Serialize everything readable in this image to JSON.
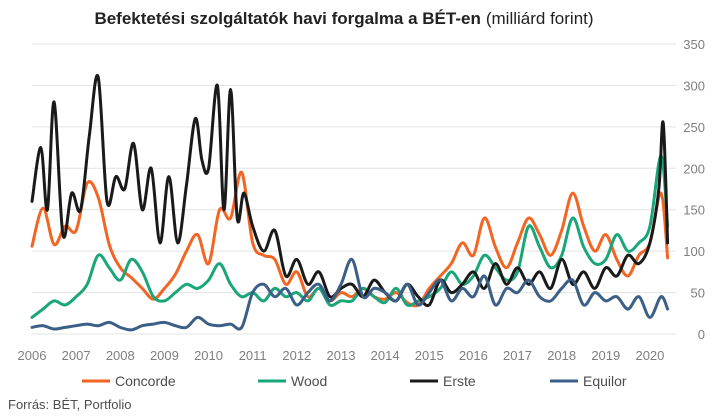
{
  "chart_data": {
    "type": "line",
    "title_bold": "Befektetési szolgáltatók havi forgalma a BÉT-en",
    "title_normal": "(milliárd forint)",
    "source": "Forrás: BÉT, Portfolio",
    "y_axis_side": "right",
    "ylim": [
      0,
      350
    ],
    "yticks": [
      "0",
      "50",
      "100",
      "150",
      "200",
      "250",
      "300",
      "350"
    ],
    "xlim": [
      2006,
      2020.5
    ],
    "xticks": [
      "2006",
      "2007",
      "2008",
      "2009",
      "2010",
      "2011",
      "2012",
      "2013",
      "2014",
      "2015",
      "2016",
      "2017",
      "2018",
      "2019",
      "2020"
    ],
    "grid": true,
    "legend": "bottom",
    "series": [
      {
        "name": "Concorde",
        "color": "#f26522",
        "x": [
          2006.0,
          2006.25,
          2006.5,
          2006.75,
          2007.0,
          2007.25,
          2007.5,
          2007.75,
          2008.0,
          2008.25,
          2008.5,
          2008.75,
          2009.0,
          2009.25,
          2009.5,
          2009.75,
          2010.0,
          2010.25,
          2010.5,
          2010.75,
          2011.0,
          2011.25,
          2011.5,
          2011.75,
          2012.0,
          2012.25,
          2012.5,
          2012.75,
          2013.0,
          2013.25,
          2013.5,
          2013.75,
          2014.0,
          2014.25,
          2014.5,
          2014.75,
          2015.0,
          2015.25,
          2015.5,
          2015.75,
          2016.0,
          2016.25,
          2016.5,
          2016.75,
          2017.0,
          2017.25,
          2017.5,
          2017.75,
          2018.0,
          2018.25,
          2018.5,
          2018.75,
          2019.0,
          2019.25,
          2019.5,
          2019.75,
          2020.0,
          2020.25,
          2020.4
        ],
        "values": [
          106,
          152,
          108,
          130,
          125,
          182,
          165,
          108,
          80,
          68,
          55,
          42,
          55,
          72,
          100,
          120,
          85,
          150,
          140,
          195,
          110,
          95,
          90,
          60,
          75,
          45,
          55,
          40,
          50,
          45,
          55,
          45,
          42,
          50,
          38,
          35,
          55,
          70,
          85,
          110,
          95,
          140,
          105,
          80,
          110,
          140,
          120,
          95,
          125,
          170,
          130,
          100,
          120,
          90,
          70,
          95,
          110,
          170,
          92
        ]
      },
      {
        "name": "Wood",
        "color": "#1aa67a",
        "x": [
          2006.0,
          2006.25,
          2006.5,
          2006.75,
          2007.0,
          2007.25,
          2007.5,
          2007.75,
          2008.0,
          2008.25,
          2008.5,
          2008.75,
          2009.0,
          2009.25,
          2009.5,
          2009.75,
          2010.0,
          2010.25,
          2010.5,
          2010.75,
          2011.0,
          2011.25,
          2011.5,
          2011.75,
          2012.0,
          2012.25,
          2012.5,
          2012.75,
          2013.0,
          2013.25,
          2013.5,
          2013.75,
          2014.0,
          2014.25,
          2014.5,
          2014.75,
          2015.0,
          2015.25,
          2015.5,
          2015.75,
          2016.0,
          2016.25,
          2016.5,
          2016.75,
          2017.0,
          2017.25,
          2017.5,
          2017.75,
          2018.0,
          2018.25,
          2018.5,
          2018.75,
          2019.0,
          2019.25,
          2019.5,
          2019.75,
          2020.0,
          2020.25,
          2020.4
        ],
        "values": [
          20,
          30,
          40,
          35,
          45,
          60,
          95,
          80,
          65,
          90,
          75,
          45,
          40,
          50,
          60,
          55,
          65,
          85,
          60,
          45,
          50,
          40,
          55,
          45,
          50,
          40,
          55,
          35,
          40,
          40,
          55,
          45,
          38,
          55,
          35,
          40,
          45,
          55,
          75,
          60,
          70,
          95,
          80,
          65,
          75,
          130,
          105,
          80,
          95,
          140,
          105,
          85,
          90,
          120,
          100,
          110,
          130,
          215,
          130
        ]
      },
      {
        "name": "Erste",
        "color": "#1a1a1a",
        "x": [
          2006.0,
          2006.2,
          2006.35,
          2006.5,
          2006.7,
          2006.9,
          2007.1,
          2007.3,
          2007.5,
          2007.7,
          2007.9,
          2008.1,
          2008.3,
          2008.5,
          2008.7,
          2008.9,
          2009.1,
          2009.3,
          2009.5,
          2009.7,
          2009.85,
          2010.0,
          2010.2,
          2010.35,
          2010.5,
          2010.65,
          2010.8,
          2011.0,
          2011.25,
          2011.5,
          2011.75,
          2012.0,
          2012.25,
          2012.5,
          2012.75,
          2013.0,
          2013.25,
          2013.5,
          2013.75,
          2014.0,
          2014.25,
          2014.5,
          2014.75,
          2015.0,
          2015.25,
          2015.5,
          2015.75,
          2016.0,
          2016.25,
          2016.5,
          2016.75,
          2017.0,
          2017.25,
          2017.5,
          2017.75,
          2018.0,
          2018.25,
          2018.5,
          2018.75,
          2019.0,
          2019.25,
          2019.5,
          2019.75,
          2020.0,
          2020.2,
          2020.3,
          2020.4
        ],
        "values": [
          160,
          225,
          150,
          280,
          120,
          170,
          150,
          240,
          310,
          160,
          190,
          175,
          230,
          150,
          200,
          110,
          190,
          110,
          180,
          260,
          210,
          200,
          300,
          150,
          295,
          140,
          170,
          130,
          100,
          125,
          70,
          90,
          60,
          75,
          45,
          55,
          60,
          45,
          65,
          50,
          40,
          60,
          45,
          35,
          65,
          50,
          60,
          75,
          55,
          85,
          60,
          80,
          60,
          75,
          55,
          90,
          60,
          75,
          55,
          80,
          70,
          95,
          85,
          110,
          175,
          255,
          110
        ]
      },
      {
        "name": "Equilor",
        "color": "#3c5f87",
        "x": [
          2006.0,
          2006.25,
          2006.5,
          2006.75,
          2007.0,
          2007.25,
          2007.5,
          2007.75,
          2008.0,
          2008.25,
          2008.5,
          2008.75,
          2009.0,
          2009.25,
          2009.5,
          2009.75,
          2010.0,
          2010.25,
          2010.5,
          2010.75,
          2011.0,
          2011.25,
          2011.5,
          2011.75,
          2012.0,
          2012.25,
          2012.5,
          2012.75,
          2013.0,
          2013.25,
          2013.5,
          2013.75,
          2014.0,
          2014.25,
          2014.5,
          2014.75,
          2015.0,
          2015.25,
          2015.5,
          2015.75,
          2016.0,
          2016.25,
          2016.5,
          2016.75,
          2017.0,
          2017.25,
          2017.5,
          2017.75,
          2018.0,
          2018.25,
          2018.5,
          2018.75,
          2019.0,
          2019.25,
          2019.5,
          2019.75,
          2020.0,
          2020.25,
          2020.4
        ],
        "values": [
          8,
          10,
          6,
          8,
          10,
          12,
          10,
          14,
          8,
          5,
          10,
          12,
          14,
          10,
          8,
          20,
          12,
          10,
          12,
          8,
          50,
          60,
          45,
          55,
          35,
          50,
          60,
          40,
          60,
          90,
          45,
          55,
          50,
          40,
          60,
          35,
          50,
          65,
          40,
          55,
          45,
          70,
          35,
          55,
          50,
          65,
          45,
          40,
          55,
          65,
          35,
          50,
          40,
          45,
          30,
          45,
          20,
          45,
          30
        ]
      }
    ]
  }
}
